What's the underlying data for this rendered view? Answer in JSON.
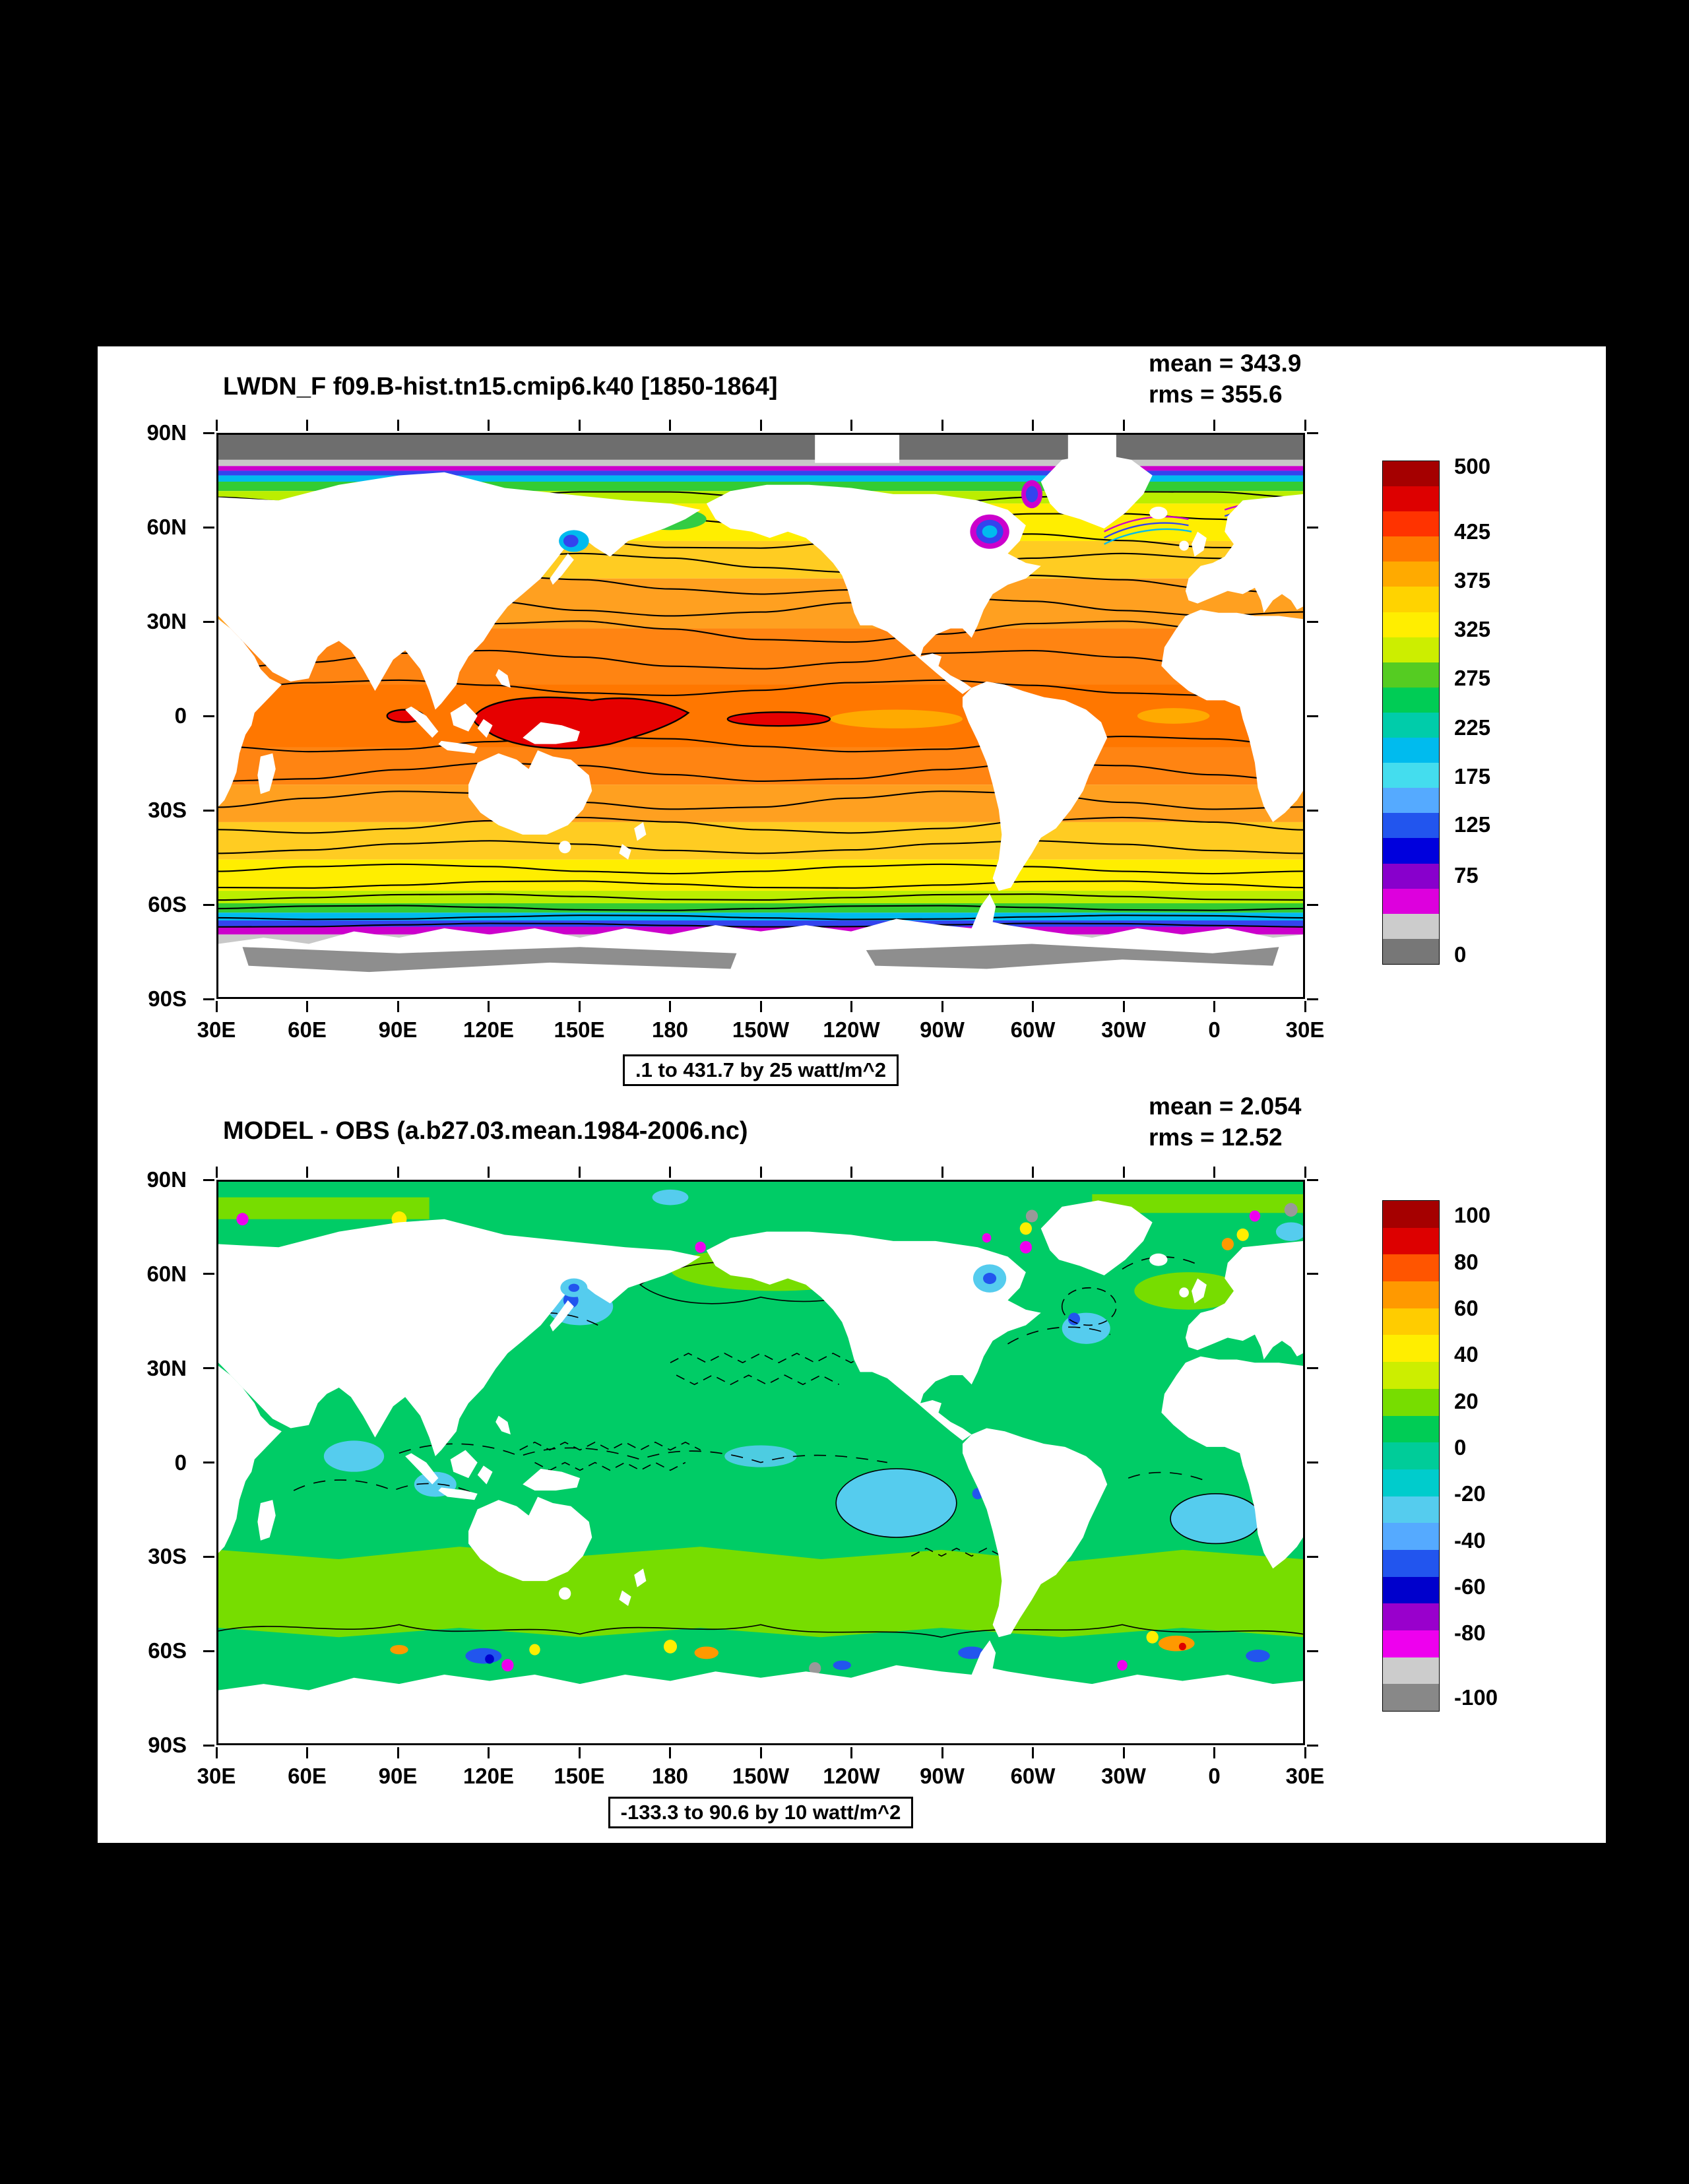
{
  "figure": {
    "bg": "#000000",
    "panel_bg": "#ffffff"
  },
  "top_panel": {
    "title": "LWDN_F f09.B-hist.tn15.cmip6.k40 [1850-1864]",
    "mean_label": "mean = 343.9",
    "rms_label": "rms = 355.6",
    "caption": ".1 to 431.7 by 25 watt/m^2",
    "lat_ticks": [
      "90N",
      "60N",
      "30N",
      "0",
      "30S",
      "60S",
      "90S"
    ],
    "lon_ticks": [
      "30E",
      "60E",
      "90E",
      "120E",
      "150E",
      "180",
      "150W",
      "120W",
      "90W",
      "60W",
      "30W",
      "0",
      "30E"
    ],
    "colorbar": {
      "labels": [
        "500",
        "425",
        "375",
        "325",
        "275",
        "225",
        "175",
        "125",
        "75",
        "0"
      ],
      "fractions": [
        0.012,
        0.142,
        0.239,
        0.336,
        0.433,
        0.531,
        0.628,
        0.725,
        0.825,
        0.983
      ],
      "colors": [
        "#a50000",
        "#dd0000",
        "#ff3300",
        "#ff7700",
        "#ffaa00",
        "#ffd300",
        "#ffee00",
        "#ccee00",
        "#55cc22",
        "#00cc55",
        "#00ccaa",
        "#00bbee",
        "#44ddee",
        "#55aaff",
        "#2255ee",
        "#0000dd",
        "#8800cc",
        "#dd00dd",
        "#cccccc",
        "#777777"
      ]
    }
  },
  "bottom_panel": {
    "title": "MODEL - OBS (a.b27.03.mean.1984-2006.nc)",
    "mean_label": "mean = 2.054",
    "rms_label": "rms = 12.52",
    "caption": "-133.3 to 90.6 by 10 watt/m^2",
    "lat_ticks": [
      "90N",
      "60N",
      "30N",
      "0",
      "30S",
      "60S",
      "90S"
    ],
    "lon_ticks": [
      "30E",
      "60E",
      "90E",
      "120E",
      "150E",
      "180",
      "150W",
      "120W",
      "90W",
      "60W",
      "30W",
      "0",
      "30E"
    ],
    "colorbar": {
      "labels": [
        "100",
        "80",
        "60",
        "40",
        "20",
        "0",
        "-20",
        "-40",
        "-60",
        "-80",
        "-100"
      ],
      "fractions": [
        0.03,
        0.121,
        0.212,
        0.303,
        0.394,
        0.485,
        0.576,
        0.667,
        0.758,
        0.849,
        0.975
      ],
      "colors": [
        "#a50000",
        "#dd0000",
        "#ff5500",
        "#ff9900",
        "#ffcc00",
        "#ffee00",
        "#ccee00",
        "#77dd00",
        "#00cc55",
        "#00cc99",
        "#00cccc",
        "#55ccee",
        "#55aaff",
        "#2255ee",
        "#0000cc",
        "#9900cc",
        "#ee00ee",
        "#cccccc",
        "#888888"
      ]
    }
  },
  "chart_data": [
    {
      "type": "heatmap",
      "subtype": "global contour map, equirectangular, centered on 180",
      "variable": "LWDN_F (downward longwave flux)",
      "title": "LWDN_F f09.B-hist.tn15.cmip6.k40 [1850-1864]",
      "mean": 343.9,
      "rms": 355.6,
      "units": "watt/m^2",
      "contour_min": 0.1,
      "contour_max": 431.7,
      "contour_interval": 25,
      "colorbar_levels": [
        500,
        425,
        375,
        325,
        275,
        225,
        175,
        125,
        75,
        0
      ],
      "lon_ticks": [
        "30E",
        "60E",
        "90E",
        "120E",
        "150E",
        "180",
        "150W",
        "120W",
        "90W",
        "60W",
        "30W",
        "0",
        "30E"
      ],
      "lat_ticks": [
        "90N",
        "60N",
        "30N",
        "0",
        "30S",
        "60S",
        "90S"
      ],
      "legend_position": "right",
      "description": "Zonally banded field: ~425+ W/m^2 (red) over equatorial west Pacific warm pool, 350-400 (orange) across tropics, 250-325 (yellow) in midlatitudes, 100-225 (green/cyan/blue) near 60S and subpolar seas, 75-125 (purple/magenta) along ice edges, near 0 (gray) over Arctic and Antarctic ice; land masked white; black contours every 25 W/m^2."
    },
    {
      "type": "heatmap",
      "subtype": "global contour map, equirectangular, centered on 180",
      "variable": "LWDN_F bias (model minus observations)",
      "title": "MODEL - OBS (a.b27.03.mean.1984-2006.nc)",
      "mean": 2.054,
      "rms": 12.52,
      "units": "watt/m^2",
      "contour_min": -133.3,
      "contour_max": 90.6,
      "contour_interval": 10,
      "colorbar_levels": [
        100,
        80,
        60,
        40,
        20,
        0,
        -20,
        -40,
        -60,
        -80,
        -100
      ],
      "lon_ticks": [
        "30E",
        "60E",
        "90E",
        "120E",
        "150E",
        "180",
        "150W",
        "120W",
        "90W",
        "60W",
        "30W",
        "0",
        "30E"
      ],
      "lat_ticks": [
        "90N",
        "60N",
        "30N",
        "0",
        "30S",
        "60S",
        "90S"
      ],
      "legend_position": "right",
      "description": "Mostly 0 to +10 W/m^2 (green) over global oceans; +10 to +20 (light green) in the southern midlatitude band; -10 to -30 (cyan) patches in SE Pacific, S Atlantic, NW Pacific and Indian Ocean; larger +/- anomalies (orange, blue, magenta, gray) along 60S and in Arctic seas; zero contour drawn as black squiggles; land masked white."
    }
  ]
}
